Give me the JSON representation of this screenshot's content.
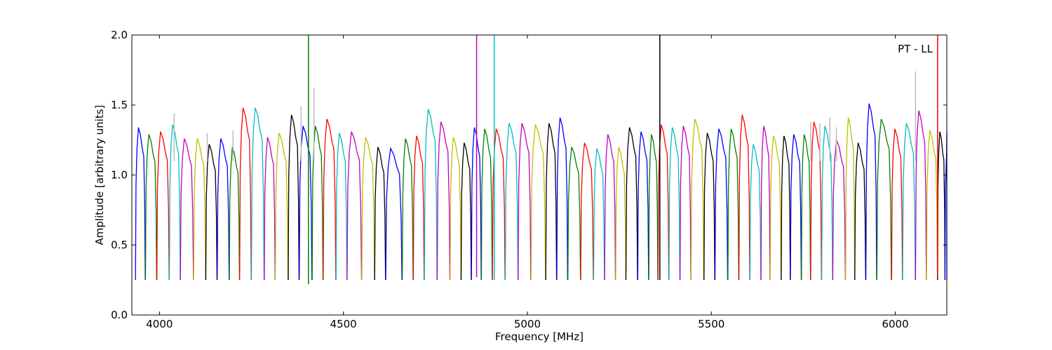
{
  "chart_data": {
    "type": "line",
    "annotation": "PT - LL",
    "xlabel": "Frequency [MHz]",
    "ylabel": "Amplitude [arbitrary units]",
    "xlim": [
      3925,
      6140
    ],
    "ylim": [
      0.0,
      2.0
    ],
    "xticks": [
      4000,
      4500,
      5000,
      5500,
      6000
    ],
    "yticks": [
      0.0,
      0.5,
      1.0,
      1.5,
      2.0
    ],
    "xtick_labels": [
      "4000",
      "4500",
      "5000",
      "5500",
      "6000"
    ],
    "ytick_labels": [
      "0.0",
      "0.5",
      "1.0",
      "1.5",
      "2.0"
    ],
    "grid": false,
    "legend": "none",
    "background_series_color": "#bbbbbb",
    "palette": [
      "#0000ff",
      "#008000",
      "#ff0000",
      "#00bfbf",
      "#bf00bf",
      "#bfbf00",
      "#000000"
    ],
    "bandpass_shape": [
      [
        0.0,
        0.25
      ],
      [
        0.05,
        0.9
      ],
      [
        0.15,
        1.15
      ],
      [
        0.3,
        1.3
      ],
      [
        0.5,
        1.25
      ],
      [
        0.7,
        1.15
      ],
      [
        0.85,
        1.1
      ],
      [
        0.95,
        0.75
      ],
      [
        1.0,
        0.25
      ]
    ],
    "channel_peaks": [
      [
        3935,
        1.34
      ],
      [
        3962,
        1.29
      ],
      [
        3993,
        1.31
      ],
      [
        4027,
        1.36
      ],
      [
        4057,
        1.26
      ],
      [
        4093,
        1.26
      ],
      [
        4126,
        1.22
      ],
      [
        4157,
        1.26
      ],
      [
        4190,
        1.2
      ],
      [
        4218,
        1.48
      ],
      [
        4250,
        1.48
      ],
      [
        4285,
        1.27
      ],
      [
        4315,
        1.3
      ],
      [
        4350,
        1.43
      ],
      [
        4380,
        1.35
      ],
      [
        4415,
        1.35
      ],
      [
        4445,
        1.4
      ],
      [
        4480,
        1.3
      ],
      [
        4510,
        1.31
      ],
      [
        4550,
        1.27
      ],
      [
        4585,
        1.2
      ],
      [
        4615,
        1.19
      ],
      [
        4660,
        1.26
      ],
      [
        4690,
        1.28
      ],
      [
        4720,
        1.47
      ],
      [
        4755,
        1.38
      ],
      [
        4790,
        1.27
      ],
      [
        4820,
        1.23
      ],
      [
        4848,
        1.34
      ],
      [
        4875,
        1.33
      ],
      [
        4905,
        1.33
      ],
      [
        4940,
        1.37
      ],
      [
        4975,
        1.37
      ],
      [
        5010,
        1.36
      ],
      [
        5050,
        1.37
      ],
      [
        5080,
        1.41
      ],
      [
        5110,
        1.2
      ],
      [
        5145,
        1.23
      ],
      [
        5180,
        1.19
      ],
      [
        5210,
        1.29
      ],
      [
        5240,
        1.2
      ],
      [
        5268,
        1.34
      ],
      [
        5300,
        1.31
      ],
      [
        5330,
        1.29
      ],
      [
        5355,
        1.36
      ],
      [
        5385,
        1.34
      ],
      [
        5415,
        1.35
      ],
      [
        5445,
        1.4
      ],
      [
        5480,
        1.3
      ],
      [
        5510,
        1.33
      ],
      [
        5545,
        1.33
      ],
      [
        5575,
        1.43
      ],
      [
        5605,
        1.22
      ],
      [
        5635,
        1.35
      ],
      [
        5660,
        1.28
      ],
      [
        5690,
        1.28
      ],
      [
        5715,
        1.29
      ],
      [
        5745,
        1.29
      ],
      [
        5770,
        1.38
      ],
      [
        5800,
        1.35
      ],
      [
        5830,
        1.25
      ],
      [
        5865,
        1.41
      ],
      [
        5890,
        1.23
      ],
      [
        5920,
        1.51
      ],
      [
        5950,
        1.4
      ],
      [
        5990,
        1.33
      ],
      [
        6020,
        1.37
      ],
      [
        6055,
        1.46
      ],
      [
        6085,
        1.32
      ],
      [
        6115,
        1.31
      ],
      [
        6135,
        1.31
      ]
    ],
    "background_spikes": [
      [
        4040,
        1.44
      ],
      [
        4130,
        1.3
      ],
      [
        4200,
        1.32
      ],
      [
        4385,
        1.49
      ],
      [
        4420,
        1.62
      ],
      [
        5770,
        1.38
      ],
      [
        5795,
        1.37
      ],
      [
        5822,
        1.41
      ],
      [
        5840,
        1.34
      ],
      [
        6055,
        1.74
      ]
    ],
    "rfi_spikes": [
      [
        4405,
        2.0,
        0.22,
        "#008000"
      ],
      [
        4862,
        2.0,
        0.27,
        "#bf00bf"
      ],
      [
        4910,
        2.0,
        0.25,
        "#00bfbf"
      ],
      [
        5360,
        2.0,
        0.25,
        "#000000"
      ],
      [
        6115,
        2.0,
        0.27,
        "#ff0000"
      ]
    ]
  }
}
